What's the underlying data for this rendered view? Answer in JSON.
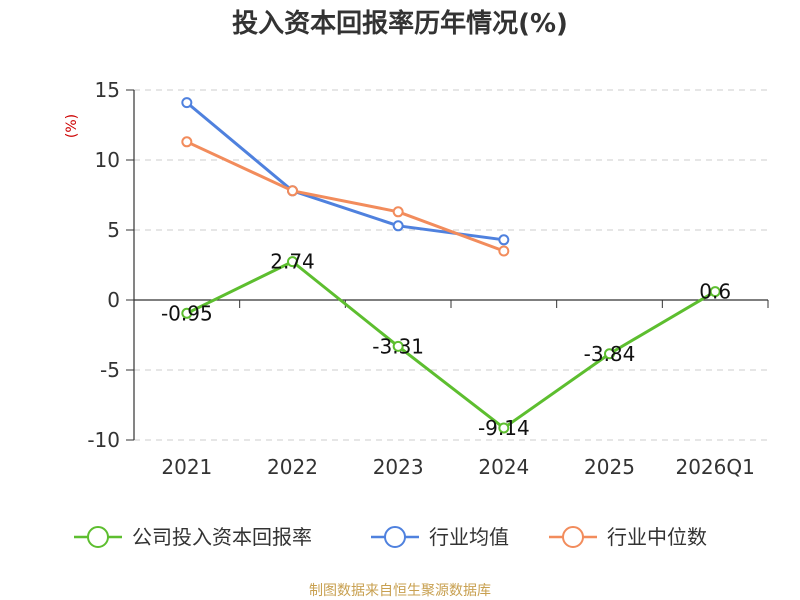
{
  "chart_data": {
    "type": "line",
    "title": "投入资本回报率历年情况(%)",
    "ylabel": "(%)",
    "xlabel": "",
    "categories": [
      "2021",
      "2022",
      "2023",
      "2024",
      "2025",
      "2026Q1"
    ],
    "ylim": [
      -10,
      15
    ],
    "yticks": [
      15,
      10,
      5,
      0,
      -5,
      -10
    ],
    "grid": true,
    "legend_position": "bottom",
    "series": [
      {
        "name": "公司投入资本回报率",
        "color": "#5dbe2f",
        "values": [
          -0.95,
          2.74,
          -3.31,
          -9.14,
          -3.84,
          0.6
        ],
        "labels": [
          "-0.95",
          "2.74",
          "-3.31",
          "-9.14",
          "-3.84",
          "0.6"
        ]
      },
      {
        "name": "行业均值",
        "color": "#4f81de",
        "values": [
          14.1,
          7.8,
          5.3,
          4.3,
          null,
          null
        ]
      },
      {
        "name": "行业中位数",
        "color": "#f28c5c",
        "values": [
          11.3,
          7.8,
          6.3,
          3.5,
          null,
          null
        ]
      }
    ],
    "unit_color": "#cc0000"
  },
  "footer": {
    "source": "制图数据来自恒生聚源数据库",
    "source_color": "#c8a050"
  }
}
